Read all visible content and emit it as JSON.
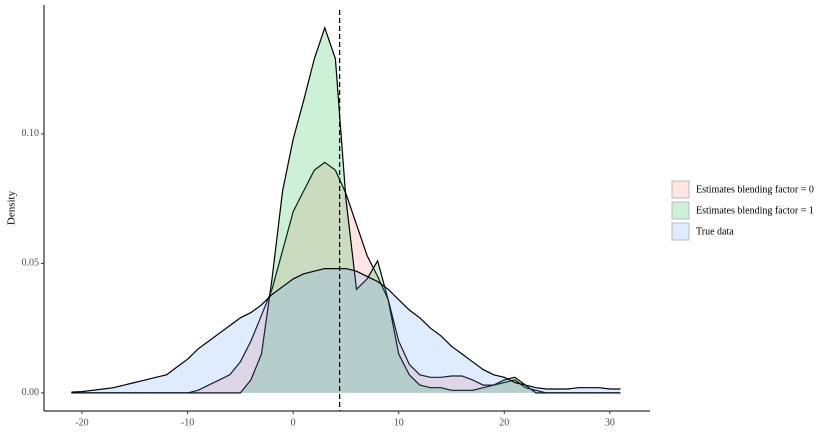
{
  "chart_data": {
    "type": "density",
    "y_label": "Density",
    "x": [
      -21,
      -20,
      -19,
      -18,
      -17,
      -16,
      -15,
      -14,
      -13,
      -12,
      -11,
      -10,
      -9,
      -8,
      -7,
      -6,
      -5,
      -4,
      -3,
      -2,
      -1,
      0,
      1,
      2,
      3,
      4,
      5,
      6,
      7,
      8,
      9,
      10,
      11,
      12,
      13,
      14,
      15,
      16,
      17,
      18,
      19,
      20,
      21,
      22,
      23,
      24,
      25,
      26,
      27,
      28,
      29,
      30,
      31
    ],
    "series": [
      {
        "name": "Estimates blending factor = 0",
        "color": "#F8766D",
        "values": [
          0,
          0,
          0,
          0,
          0,
          0,
          0,
          0,
          0,
          0,
          0,
          0,
          0.001,
          0.003,
          0.005,
          0.007,
          0.012,
          0.02,
          0.03,
          0.04,
          0.055,
          0.07,
          0.078,
          0.086,
          0.089,
          0.086,
          0.077,
          0.065,
          0.053,
          0.045,
          0.036,
          0.02,
          0.011,
          0.007,
          0.006,
          0.006,
          0.0065,
          0.0065,
          0.005,
          0.003,
          0.003,
          0.004,
          0.005,
          0.002,
          0.001,
          0,
          0,
          0,
          0,
          0,
          0,
          0,
          0
        ]
      },
      {
        "name": "Estimates blending factor = 1",
        "color": "#00BA38",
        "values": [
          0,
          0,
          0,
          0,
          0,
          0,
          0,
          0,
          0,
          0,
          0,
          0,
          0,
          0,
          0,
          0,
          0,
          0.005,
          0.015,
          0.044,
          0.078,
          0.098,
          0.113,
          0.129,
          0.141,
          0.129,
          0.075,
          0.04,
          0.044,
          0.051,
          0.036,
          0.015,
          0.007,
          0.003,
          0.002,
          0.002,
          0.001,
          0.001,
          0.001,
          0.002,
          0.003,
          0.005,
          0.006,
          0.003,
          0,
          0,
          0,
          0,
          0,
          0,
          0,
          0,
          0
        ]
      },
      {
        "name": "True data",
        "color": "#619CFF",
        "values": [
          0.0003,
          0.0005,
          0.001,
          0.0015,
          0.002,
          0.003,
          0.004,
          0.005,
          0.006,
          0.007,
          0.01,
          0.013,
          0.017,
          0.02,
          0.023,
          0.026,
          0.029,
          0.031,
          0.034,
          0.038,
          0.041,
          0.044,
          0.046,
          0.047,
          0.048,
          0.048,
          0.048,
          0.047,
          0.045,
          0.043,
          0.04,
          0.036,
          0.032,
          0.029,
          0.025,
          0.022,
          0.018,
          0.015,
          0.012,
          0.009,
          0.007,
          0.006,
          0.004,
          0.003,
          0.002,
          0.0015,
          0.0015,
          0.0015,
          0.002,
          0.002,
          0.002,
          0.0015,
          0.0015
        ]
      }
    ],
    "vline": 4.4,
    "xlim": [
      -23.6,
      33.8
    ],
    "ylim": [
      -0.007,
      0.1498
    ],
    "xticks": [
      -20,
      -10,
      0,
      10,
      20,
      30
    ],
    "yticks": [
      {
        "value": 0,
        "label": "0.00"
      },
      {
        "value": 0.05,
        "label": "0.05"
      },
      {
        "value": 0.1,
        "label": "0.10"
      }
    ],
    "fill_opacity": 0.2,
    "legend": "right"
  }
}
